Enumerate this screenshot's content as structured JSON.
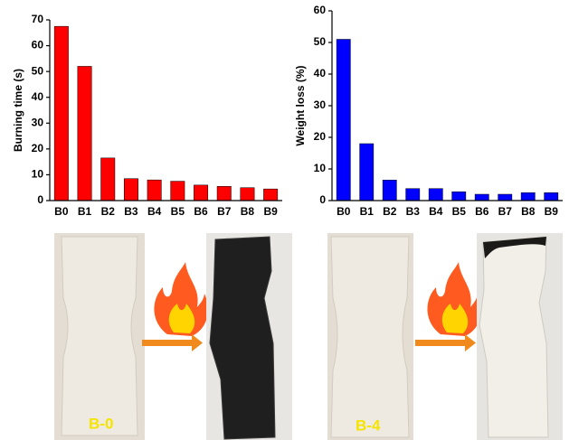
{
  "chart_data": [
    {
      "type": "bar",
      "y_label": "Burning time (s)",
      "categories": [
        "B0",
        "B1",
        "B2",
        "B3",
        "B4",
        "B5",
        "B6",
        "B7",
        "B8",
        "B9"
      ],
      "values": [
        67.5,
        52,
        16.5,
        8.5,
        8,
        7.5,
        6,
        5.5,
        5,
        4.5
      ],
      "color": "#ff0000",
      "ylim": [
        0,
        70
      ],
      "yticks": [
        0,
        10,
        20,
        30,
        40,
        50,
        60,
        70
      ],
      "grid": false
    },
    {
      "type": "bar",
      "y_label": "Weight loss (%)",
      "categories": [
        "B0",
        "B1",
        "B2",
        "B3",
        "B4",
        "B5",
        "B6",
        "B7",
        "B8",
        "B9"
      ],
      "values": [
        51,
        18,
        6.5,
        3.8,
        3.8,
        2.8,
        2,
        2,
        2.5,
        2.5
      ],
      "color": "#0000ff",
      "ylim": [
        0,
        60
      ],
      "yticks": [
        0,
        10,
        20,
        30,
        40,
        50,
        60
      ],
      "grid": false
    }
  ],
  "photo_labels": [
    "B-0",
    "B-4"
  ]
}
